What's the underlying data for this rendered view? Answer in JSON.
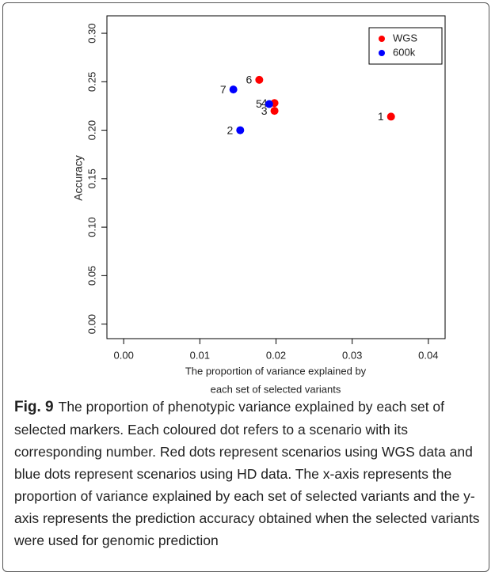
{
  "chart_data": {
    "type": "scatter",
    "x_label": [
      "The proportion of variance explained by",
      "each set of selected variants"
    ],
    "y_label": "Accuracy",
    "xlim": [
      -0.0022,
      0.0422
    ],
    "ylim": [
      -0.015,
      0.318
    ],
    "xticks": [
      {
        "value": 0,
        "label": "0.00"
      },
      {
        "value": 0.01,
        "label": "0.01"
      },
      {
        "value": 0.02,
        "label": "0.02"
      },
      {
        "value": 0.03,
        "label": "0.03"
      },
      {
        "value": 0.04,
        "label": "0.04"
      }
    ],
    "yticks": [
      {
        "value": 0,
        "label": "0.00"
      },
      {
        "value": 0.05,
        "label": "0.05"
      },
      {
        "value": 0.1,
        "label": "0.10"
      },
      {
        "value": 0.15,
        "label": "0.15"
      },
      {
        "value": 0.2,
        "label": "0.20"
      },
      {
        "value": 0.25,
        "label": "0.25"
      },
      {
        "value": 0.3,
        "label": "0.30"
      }
    ],
    "legend": "top-right",
    "series": [
      {
        "name": "WGS",
        "color": "#ff0000",
        "x": [
          0.0351,
          0.0198,
          0.0198,
          0.0178
        ],
        "values": [
          0.214,
          0.22,
          0.228,
          0.252
        ],
        "point_labels": [
          "1",
          "3",
          "4",
          "6"
        ]
      },
      {
        "name": "600k",
        "color": "#0000ff",
        "x": [
          0.0153,
          0.0191,
          0.0144
        ],
        "values": [
          0.2,
          0.227,
          0.242
        ],
        "point_labels": [
          "2",
          "5",
          "7"
        ]
      }
    ]
  },
  "caption": {
    "label": "Fig. 9",
    "text": "The proportion of phenotypic variance explained by each set of selected markers. Each coloured dot refers to a scenario with its corresponding number. Red dots represent scenarios using WGS data and blue dots represent scenarios using HD data. The x-axis represents the proportion of variance explained by each set of selected variants and the y-axis represents the prediction accuracy obtained when the selected variants were used for genomic prediction"
  }
}
